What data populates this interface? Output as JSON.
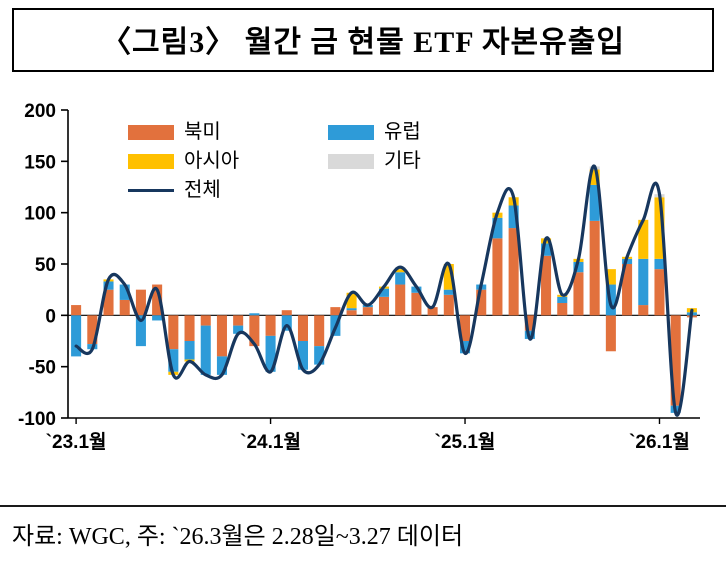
{
  "title": "〈그림3〉 월간 금 현물 ETF 자본유출입",
  "footnote": "자료: WGC, 주: `26.3월은 2.28일~3.27 데이터",
  "chart_data": {
    "type": "bar",
    "subtype": "stacked-bar-with-line",
    "title": "월간 금 현물 ETF 자본유출입",
    "xlabel": "",
    "ylabel": "",
    "ylim": [
      -100,
      200
    ],
    "yticks": [
      200,
      150,
      100,
      50,
      0,
      -50,
      -100
    ],
    "grid": false,
    "legend_position": "top-inside",
    "categories": [
      "23.1",
      "23.2",
      "23.3",
      "23.4",
      "23.5",
      "23.6",
      "23.7",
      "23.8",
      "23.9",
      "23.10",
      "23.11",
      "23.12",
      "24.1",
      "24.2",
      "24.3",
      "24.4",
      "24.5",
      "24.6",
      "24.7",
      "24.8",
      "24.9",
      "24.10",
      "24.11",
      "24.12",
      "25.1",
      "25.2",
      "25.3",
      "25.4",
      "25.5",
      "25.6",
      "25.7",
      "25.8",
      "25.9",
      "25.10",
      "25.11",
      "25.12",
      "26.1",
      "26.2",
      "26.3"
    ],
    "xtick_labels": [
      {
        "index": 0,
        "label": "`23.1월"
      },
      {
        "index": 12,
        "label": "`24.1월"
      },
      {
        "index": 24,
        "label": "`25.1월"
      },
      {
        "index": 36,
        "label": "`26.1월"
      }
    ],
    "bar_series": [
      {
        "name": "북미",
        "color": "#E2713D",
        "values": [
          10,
          -28,
          25,
          15,
          25,
          30,
          -33,
          -25,
          -10,
          -40,
          -10,
          -30,
          -20,
          5,
          -25,
          -30,
          8,
          5,
          8,
          18,
          30,
          22,
          8,
          20,
          -25,
          25,
          75,
          85,
          -15,
          58,
          12,
          42,
          92,
          -35,
          50,
          10,
          45,
          -88,
          -2
        ]
      },
      {
        "name": "유럽",
        "color": "#2E9BD8",
        "values": [
          -40,
          -5,
          8,
          15,
          -30,
          -5,
          -22,
          -18,
          -48,
          -18,
          -8,
          2,
          -35,
          -15,
          -28,
          -18,
          -20,
          2,
          2,
          8,
          12,
          6,
          0,
          5,
          -12,
          5,
          20,
          22,
          -8,
          12,
          6,
          10,
          35,
          30,
          5,
          45,
          10,
          -7,
          3
        ]
      },
      {
        "name": "아시아",
        "color": "#FFC000",
        "values": [
          0,
          0,
          2,
          0,
          0,
          0,
          -3,
          -2,
          0,
          0,
          0,
          0,
          0,
          0,
          0,
          0,
          0,
          15,
          0,
          2,
          3,
          0,
          0,
          25,
          0,
          0,
          5,
          8,
          0,
          5,
          2,
          3,
          15,
          15,
          2,
          38,
          60,
          0,
          4
        ]
      },
      {
        "name": "기타",
        "color": "#D9D9D9",
        "values": [
          0,
          0,
          0,
          0,
          0,
          0,
          0,
          0,
          0,
          0,
          0,
          0,
          0,
          0,
          0,
          0,
          0,
          0,
          0,
          0,
          2,
          0,
          0,
          0,
          0,
          0,
          0,
          0,
          0,
          0,
          0,
          0,
          3,
          0,
          0,
          0,
          3,
          0,
          0
        ]
      }
    ],
    "line_series": {
      "name": "전체",
      "color": "#17375E",
      "values": [
        -30,
        -33,
        35,
        30,
        -5,
        25,
        -58,
        -45,
        -58,
        -58,
        -18,
        -28,
        -55,
        -10,
        -53,
        -48,
        -12,
        22,
        10,
        28,
        47,
        28,
        8,
        50,
        -37,
        30,
        100,
        115,
        -23,
        75,
        20,
        55,
        145,
        10,
        57,
        93,
        118,
        -95,
        5
      ]
    }
  }
}
